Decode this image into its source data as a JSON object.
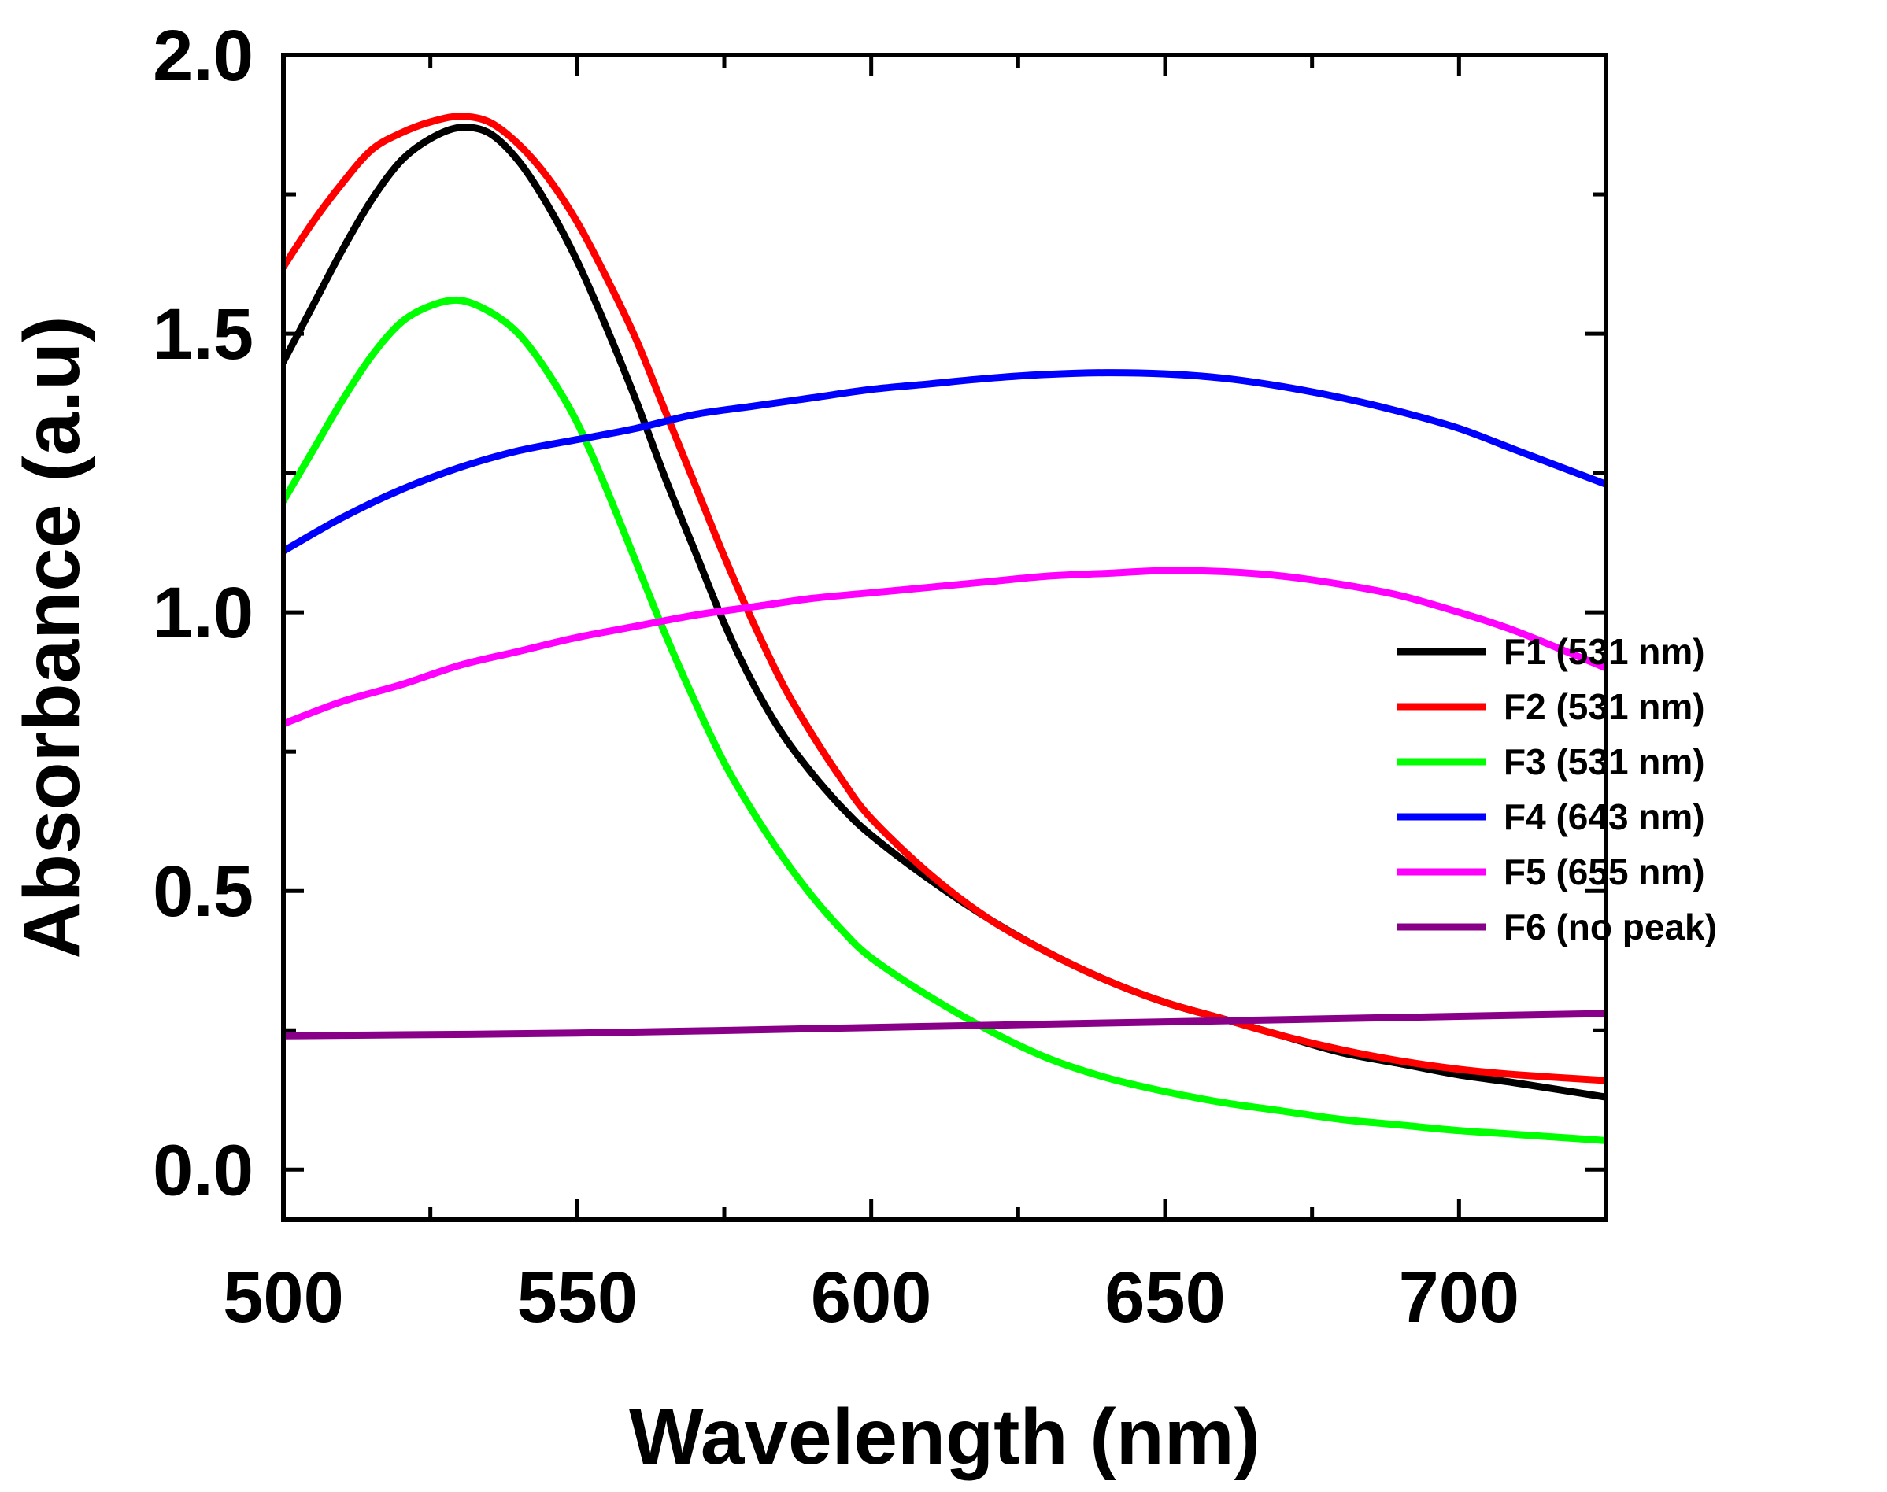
{
  "chart_data": {
    "type": "line",
    "title": "",
    "xlabel": "Wavelength (nm)",
    "ylabel": "Absorbance (a.u)",
    "xlim": [
      500,
      725
    ],
    "ylim": [
      -0.09,
      2.0
    ],
    "xticks": [
      500,
      550,
      600,
      650,
      700
    ],
    "xtick_labels": [
      "500",
      "550",
      "600",
      "650",
      "700"
    ],
    "yticks": [
      0.0,
      0.5,
      1.0,
      1.5,
      2.0
    ],
    "ytick_labels": [
      "0.0",
      "0.5",
      "1.0",
      "1.5",
      "2.0"
    ],
    "legend_position": "right",
    "grid": false,
    "series": [
      {
        "name": "F1 (531 nm)",
        "color": "#000000",
        "x": [
          500,
          505,
          510,
          515,
          520,
          525,
          530,
          535,
          540,
          545,
          550,
          555,
          560,
          565,
          570,
          575,
          580,
          585,
          590,
          595,
          600,
          610,
          620,
          630,
          640,
          650,
          660,
          670,
          680,
          690,
          700,
          710,
          725
        ],
        "y": [
          1.45,
          1.55,
          1.65,
          1.74,
          1.81,
          1.85,
          1.87,
          1.86,
          1.81,
          1.73,
          1.63,
          1.51,
          1.38,
          1.24,
          1.11,
          0.98,
          0.87,
          0.78,
          0.71,
          0.65,
          0.6,
          0.52,
          0.45,
          0.39,
          0.34,
          0.3,
          0.27,
          0.24,
          0.21,
          0.19,
          0.17,
          0.155,
          0.13
        ]
      },
      {
        "name": "F2 (531 nm)",
        "color": "#ff0000",
        "x": [
          500,
          505,
          510,
          515,
          520,
          525,
          530,
          535,
          540,
          545,
          550,
          555,
          560,
          565,
          570,
          575,
          580,
          585,
          590,
          595,
          600,
          610,
          620,
          630,
          640,
          650,
          660,
          670,
          680,
          690,
          700,
          710,
          725
        ],
        "y": [
          1.62,
          1.7,
          1.77,
          1.83,
          1.86,
          1.88,
          1.89,
          1.88,
          1.84,
          1.78,
          1.7,
          1.6,
          1.49,
          1.36,
          1.23,
          1.1,
          0.98,
          0.87,
          0.78,
          0.7,
          0.63,
          0.53,
          0.45,
          0.39,
          0.34,
          0.3,
          0.27,
          0.24,
          0.215,
          0.195,
          0.18,
          0.17,
          0.16
        ]
      },
      {
        "name": "F3 (531 nm)",
        "color": "#00ff00",
        "x": [
          500,
          505,
          510,
          515,
          520,
          525,
          530,
          535,
          540,
          545,
          550,
          555,
          560,
          565,
          570,
          575,
          580,
          585,
          590,
          595,
          600,
          610,
          620,
          630,
          640,
          650,
          660,
          670,
          680,
          690,
          700,
          710,
          725
        ],
        "y": [
          1.2,
          1.29,
          1.38,
          1.46,
          1.52,
          1.55,
          1.56,
          1.54,
          1.5,
          1.43,
          1.34,
          1.22,
          1.09,
          0.96,
          0.84,
          0.73,
          0.64,
          0.56,
          0.49,
          0.43,
          0.38,
          0.31,
          0.25,
          0.2,
          0.165,
          0.14,
          0.12,
          0.105,
          0.09,
          0.08,
          0.07,
          0.063,
          0.052
        ]
      },
      {
        "name": "F4 (643 nm)",
        "color": "#0000ff",
        "x": [
          500,
          510,
          520,
          530,
          540,
          550,
          560,
          570,
          580,
          590,
          600,
          610,
          620,
          630,
          640,
          650,
          660,
          670,
          680,
          690,
          700,
          710,
          725
        ],
        "y": [
          1.11,
          1.17,
          1.22,
          1.26,
          1.29,
          1.31,
          1.33,
          1.355,
          1.37,
          1.385,
          1.4,
          1.41,
          1.42,
          1.427,
          1.43,
          1.428,
          1.42,
          1.405,
          1.385,
          1.36,
          1.33,
          1.29,
          1.23
        ]
      },
      {
        "name": "F5 (655 nm)",
        "color": "#ff00ff",
        "x": [
          500,
          510,
          520,
          530,
          540,
          550,
          560,
          570,
          580,
          590,
          600,
          610,
          620,
          630,
          640,
          650,
          660,
          670,
          680,
          690,
          700,
          710,
          725
        ],
        "y": [
          0.8,
          0.84,
          0.87,
          0.905,
          0.93,
          0.955,
          0.975,
          0.995,
          1.01,
          1.025,
          1.035,
          1.045,
          1.055,
          1.065,
          1.07,
          1.075,
          1.073,
          1.065,
          1.05,
          1.03,
          1.0,
          0.965,
          0.9
        ]
      },
      {
        "name": "F6 (no peak)",
        "color": "#880088",
        "x": [
          500,
          550,
          600,
          650,
          700,
          725
        ],
        "y": [
          0.24,
          0.245,
          0.255,
          0.265,
          0.275,
          0.28
        ]
      }
    ]
  }
}
